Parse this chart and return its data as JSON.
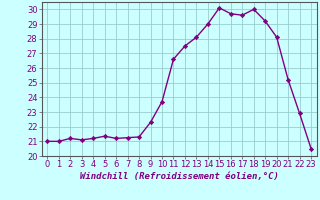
{
  "hours": [
    0,
    1,
    2,
    3,
    4,
    5,
    6,
    7,
    8,
    9,
    10,
    11,
    12,
    13,
    14,
    15,
    16,
    17,
    18,
    19,
    20,
    21,
    22,
    23
  ],
  "values": [
    21.0,
    21.0,
    21.2,
    21.1,
    21.2,
    21.35,
    21.2,
    21.25,
    21.3,
    22.3,
    23.7,
    26.6,
    27.5,
    28.1,
    29.0,
    30.1,
    29.7,
    29.6,
    30.0,
    29.2,
    28.1,
    25.2,
    22.9,
    20.5
  ],
  "line_color": "#800080",
  "marker": "D",
  "marker_size": 2.2,
  "bg_color": "#ccffff",
  "grid_color": "#99cccc",
  "xlabel": "Windchill (Refroidissement éolien,°C)",
  "ylim": [
    20,
    30.5
  ],
  "xlim": [
    -0.5,
    23.5
  ],
  "yticks": [
    20,
    21,
    22,
    23,
    24,
    25,
    26,
    27,
    28,
    29,
    30
  ],
  "xticks": [
    0,
    1,
    2,
    3,
    4,
    5,
    6,
    7,
    8,
    9,
    10,
    11,
    12,
    13,
    14,
    15,
    16,
    17,
    18,
    19,
    20,
    21,
    22,
    23
  ],
  "xlabel_fontsize": 6.5,
  "tick_fontsize": 6.0,
  "linewidth": 1.0
}
